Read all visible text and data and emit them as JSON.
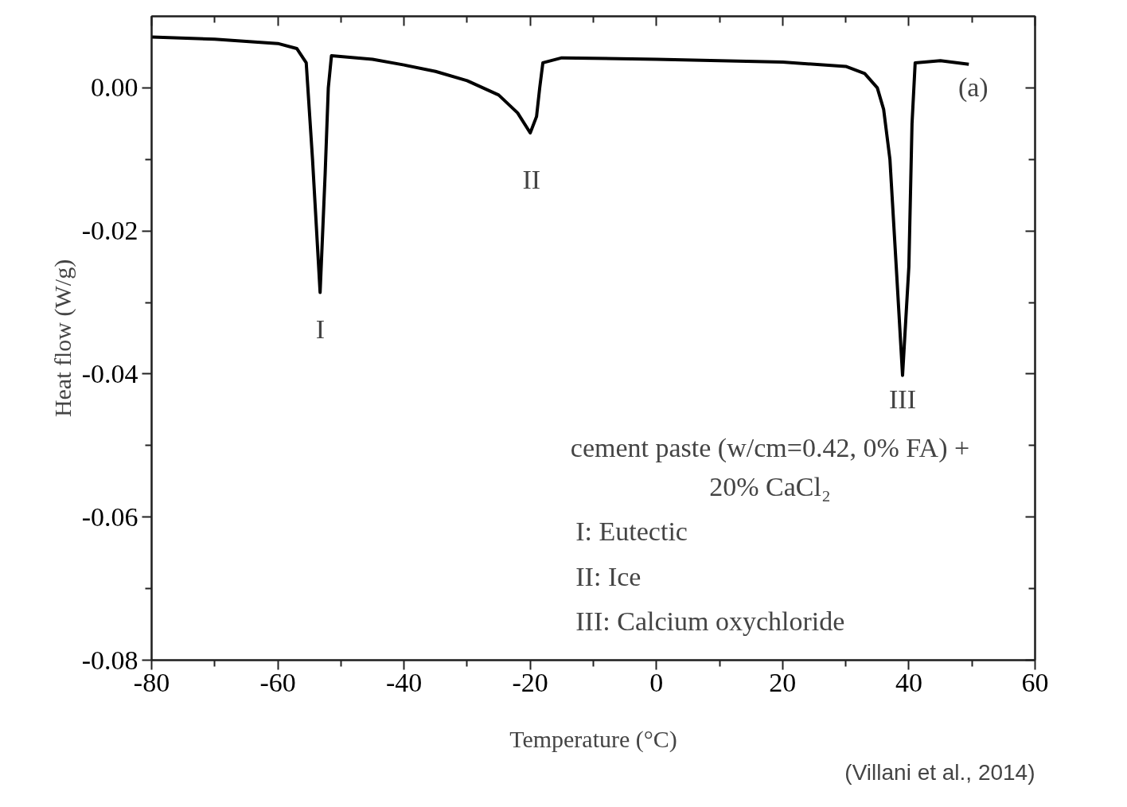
{
  "chart_data": {
    "type": "line",
    "xlabel": "Temperature (°C)",
    "ylabel": "Heat flow (W/g)",
    "x": [
      -80,
      -70,
      -60,
      -57,
      -55.5,
      -54.5,
      -53.3,
      -52.5,
      -52,
      -51.5,
      -45,
      -40,
      -35,
      -30,
      -25,
      -22,
      -20,
      -19,
      -18.5,
      -18,
      -15,
      0,
      20,
      30,
      33,
      35,
      36,
      37,
      38,
      39,
      40,
      40.5,
      41,
      45,
      49.5
    ],
    "series": [
      {
        "color": "#000000",
        "values": [
          0.0071,
          0.0068,
          0.0062,
          0.0055,
          0.0035,
          -0.01,
          -0.0286,
          -0.012,
          0.0,
          0.0045,
          0.004,
          0.0032,
          0.0023,
          0.001,
          -0.001,
          -0.0035,
          -0.0063,
          -0.004,
          0.0,
          0.0035,
          0.0042,
          0.004,
          0.0036,
          0.003,
          0.002,
          0.0,
          -0.003,
          -0.01,
          -0.025,
          -0.0402,
          -0.025,
          -0.005,
          0.0035,
          0.0038,
          0.0033
        ]
      }
    ],
    "xlim": [
      -80,
      60
    ],
    "ylim": [
      -0.08,
      0.01
    ],
    "xticks": [
      {
        "value": -80,
        "label": "-80"
      },
      {
        "value": -70,
        "label": null
      },
      {
        "value": -60,
        "label": "-60"
      },
      {
        "value": -50,
        "label": null
      },
      {
        "value": -40,
        "label": "-40"
      },
      {
        "value": -30,
        "label": null
      },
      {
        "value": -20,
        "label": "-20"
      },
      {
        "value": -10,
        "label": null
      },
      {
        "value": 0,
        "label": "0"
      },
      {
        "value": 10,
        "label": null
      },
      {
        "value": 20,
        "label": "20"
      },
      {
        "value": 30,
        "label": null
      },
      {
        "value": 40,
        "label": "40"
      },
      {
        "value": 50,
        "label": null
      },
      {
        "value": 60,
        "label": "60"
      }
    ],
    "yticks": [
      {
        "value": -0.08,
        "label": "-0.08"
      },
      {
        "value": -0.07,
        "label": null
      },
      {
        "value": -0.06,
        "label": "-0.06"
      },
      {
        "value": -0.05,
        "label": null
      },
      {
        "value": -0.04,
        "label": "-0.04"
      },
      {
        "value": -0.03,
        "label": null
      },
      {
        "value": -0.02,
        "label": "-0.02"
      },
      {
        "value": -0.01,
        "label": null
      },
      {
        "value": 0,
        "label": "0.00"
      }
    ],
    "grid": false,
    "marker": "none",
    "line_style": "solid",
    "annotations": [
      "I",
      "II",
      "III",
      "(a)",
      "cement paste (w/cm=0.42, 0% FA) +",
      "20% CaCl₂",
      "I: Eutectic",
      "II: Ice",
      "III: Calcium oxychloride",
      "(Villani et al., 2014)"
    ]
  }
}
